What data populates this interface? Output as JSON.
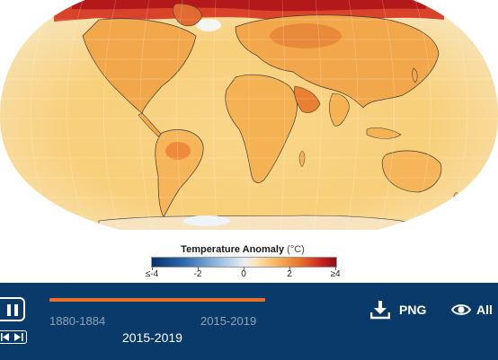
{
  "map": {
    "description_colors": {
      "ocean_warm": "#f8cf7a",
      "land_warm": "#f2a84a",
      "arctic_hot": "#c4261e",
      "cool": "#eef3f8"
    }
  },
  "legend": {
    "title": "Temperature Anomaly",
    "unit": "(°C)",
    "ticks": [
      "≤-4",
      "-2",
      "0",
      "2",
      "≥4"
    ],
    "tick_values": [
      -4,
      -2,
      0,
      2,
      4
    ],
    "gradient_colors": [
      "#08306b",
      "#2f6db1",
      "#8fb7dc",
      "#e8eef5",
      "#f7b45a",
      "#c8231f",
      "#8c0f14"
    ]
  },
  "controls": {
    "state": "playing",
    "timeline": {
      "start": "1880-1884",
      "end": "2015-2019",
      "current": "2015-2019",
      "progress": 1.0
    },
    "png_label": "PNG",
    "all_label": "All",
    "accent": "#e8702a",
    "bar_bg": "#0a3a6a"
  }
}
